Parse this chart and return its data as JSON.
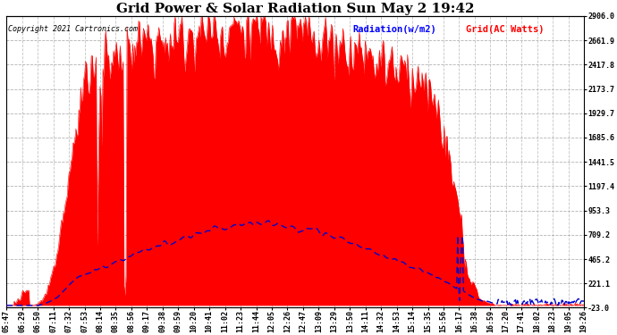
{
  "title": "Grid Power & Solar Radiation Sun May 2 19:42",
  "copyright": "Copyright 2021 Cartronics.com",
  "legend_radiation": "Radiation(w/m2)",
  "legend_grid": "Grid(AC Watts)",
  "yticks": [
    2906.0,
    2661.9,
    2417.8,
    2173.7,
    1929.7,
    1685.6,
    1441.5,
    1197.4,
    953.3,
    709.2,
    465.2,
    221.1,
    -23.0
  ],
  "ymin": -23.0,
  "ymax": 2906.0,
  "background_color": "#ffffff",
  "radiation_color": "#ff0000",
  "grid_line_color": "#0000cc",
  "xtick_labels": [
    "05:47",
    "06:29",
    "06:50",
    "07:11",
    "07:32",
    "07:53",
    "08:14",
    "08:35",
    "08:56",
    "09:17",
    "09:38",
    "09:59",
    "10:20",
    "10:41",
    "11:02",
    "11:23",
    "11:44",
    "12:05",
    "12:26",
    "12:47",
    "13:09",
    "13:29",
    "13:50",
    "14:11",
    "14:32",
    "14:53",
    "15:14",
    "15:35",
    "15:56",
    "16:17",
    "16:38",
    "16:59",
    "17:20",
    "17:41",
    "18:02",
    "18:23",
    "19:05",
    "19:26"
  ],
  "hgrid_color": "#aaaaaa",
  "vgrid_color": "#aaaaaa",
  "title_fontsize": 11,
  "axis_fontsize": 6,
  "legend_fontsize": 7.5,
  "copyright_fontsize": 6
}
